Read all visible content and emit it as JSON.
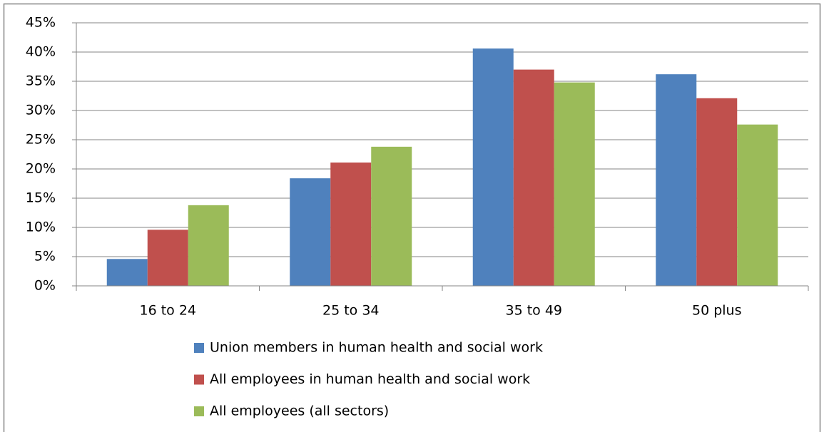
{
  "chart_data": {
    "type": "bar",
    "categories": [
      "16 to 24",
      "25 to 34",
      "35 to 49",
      "50 plus"
    ],
    "series": [
      {
        "name": "Union members in human health and social work",
        "color": "#4f81bd",
        "values": [
          4.6,
          18.4,
          40.6,
          36.2
        ]
      },
      {
        "name": "All employees in human health and social work",
        "color": "#c0504d",
        "values": [
          9.6,
          21.1,
          37.0,
          32.1
        ]
      },
      {
        "name": "All employees (all sectors)",
        "color": "#9bbb59",
        "values": [
          13.8,
          23.8,
          34.8,
          27.6
        ]
      }
    ],
    "ylim": [
      0,
      45
    ],
    "yticks": [
      {
        "value": 0,
        "label": "0%"
      },
      {
        "value": 5,
        "label": "5%"
      },
      {
        "value": 10,
        "label": "10%"
      },
      {
        "value": 15,
        "label": "15%"
      },
      {
        "value": 20,
        "label": "20%"
      },
      {
        "value": 25,
        "label": "25%"
      },
      {
        "value": 30,
        "label": "30%"
      },
      {
        "value": 35,
        "label": "35%"
      },
      {
        "value": 40,
        "label": "40%"
      },
      {
        "value": 45,
        "label": "45%"
      }
    ],
    "grid": true,
    "legend": "bottom"
  }
}
